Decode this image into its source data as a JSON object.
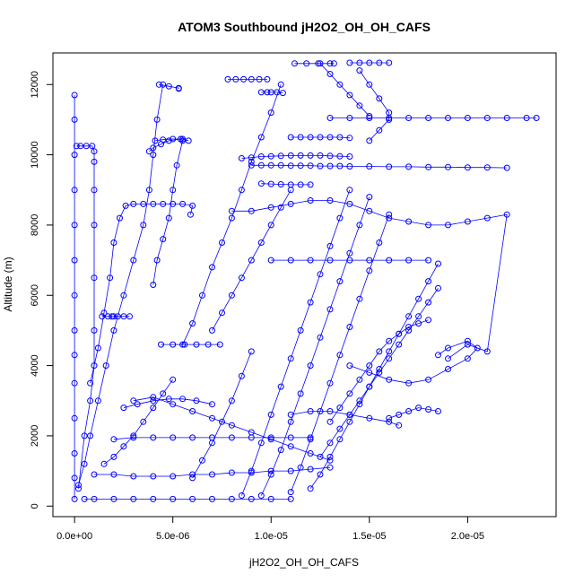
{
  "chart_data": {
    "type": "scatter",
    "title": "ATOM3 Southbound jH2O2_OH_OH_CAFS",
    "xlabel": "jH2O2_OH_OH_CAFS",
    "ylabel": "Altitude (m)",
    "xlim": [
      -1.1e-06,
      2.45e-05
    ],
    "ylim": [
      -300,
      12900
    ],
    "xticks": [
      {
        "value": 0,
        "label": "0.0e+00"
      },
      {
        "value": 5e-06,
        "label": "5.0e-06"
      },
      {
        "value": 1e-05,
        "label": "1.0e-05"
      },
      {
        "value": 1.5e-05,
        "label": "1.5e-05"
      },
      {
        "value": 2e-05,
        "label": "2.0e-05"
      }
    ],
    "yticks": [
      {
        "value": 0,
        "label": "0"
      },
      {
        "value": 2000,
        "label": "2000"
      },
      {
        "value": 4000,
        "label": "4000"
      },
      {
        "value": 6000,
        "label": "6000"
      },
      {
        "value": 8000,
        "label": "8000"
      },
      {
        "value": 10000,
        "label": "10000"
      },
      {
        "value": 12000,
        "label": "12000"
      }
    ],
    "marker": "open-circle",
    "line": true,
    "color": "#0000ff",
    "grid": false,
    "series": [
      {
        "x": [
          0,
          0,
          0,
          0,
          0,
          0,
          0,
          0,
          0,
          0,
          0,
          0,
          0,
          0
        ],
        "y": [
          11700,
          11000,
          10000,
          9000,
          8000,
          7000,
          6000,
          5000,
          4300,
          3500,
          2500,
          1500,
          800,
          200
        ]
      },
      {
        "x": [
          1e-07,
          3e-07,
          6e-07,
          9e-07,
          1e-06,
          1e-06,
          1e-06,
          1e-06,
          1e-06,
          1e-06,
          1e-06,
          8e-07,
          5e-07,
          2e-07
        ],
        "y": [
          10250,
          10250,
          10250,
          10250,
          10100,
          9800,
          9000,
          8000,
          6500,
          5000,
          4000,
          3000,
          2000,
          500
        ]
      },
      {
        "x": [
          2e-07,
          5e-07,
          8e-07,
          1.2e-06,
          1.6e-06,
          2e-06,
          2.5e-06,
          3e-06,
          3.5e-06,
          3.8e-06,
          4e-06,
          4.2e-06,
          4.5e-06
        ],
        "y": [
          600,
          1200,
          2000,
          3000,
          4000,
          5000,
          6000,
          7000,
          8000,
          9000,
          10000,
          11000,
          12000
        ]
      },
      {
        "x": [
          4.3e-06,
          4.8e-06,
          5.3e-06,
          5.3e-06
        ],
        "y": [
          12000,
          11950,
          11900,
          11880
        ]
      },
      {
        "x": [
          8e-07,
          1.2e-06,
          1.5e-06,
          1.8e-06,
          2e-06,
          2.3e-06,
          2.6e-06,
          3e-06,
          3.5e-06,
          4e-06,
          4.5e-06,
          5e-06,
          5.5e-06,
          6e-06,
          5.9e-06
        ],
        "y": [
          3500,
          4500,
          5500,
          6500,
          7500,
          8200,
          8550,
          8600,
          8600,
          8600,
          8600,
          8600,
          8600,
          8550,
          8300
        ]
      },
      {
        "x": [
          1.4e-06,
          1.7e-06,
          1.9e-06,
          2e-06,
          2.2e-06,
          2.5e-06,
          2.8e-06
        ],
        "y": [
          5400,
          5400,
          5400,
          5400,
          5400,
          5400,
          5400
        ]
      },
      {
        "x": [
          4e-06,
          4.2e-06,
          4.5e-06,
          4.8e-06,
          5e-06,
          5.2e-06,
          5.5e-06,
          5.4e-06,
          4.8e-06,
          4.4e-06,
          4e-06,
          3.8e-06
        ],
        "y": [
          6300,
          7000,
          7600,
          8200,
          9000,
          9700,
          10400,
          10450,
          10400,
          10300,
          10200,
          10100
        ]
      },
      {
        "x": [
          4.1e-06,
          4.5e-06,
          5e-06,
          5.5e-06,
          5.8e-06
        ],
        "y": [
          10400,
          10430,
          10450,
          10450,
          10400
        ]
      },
      {
        "x": [
          5.5e-06,
          6e-06,
          6.5e-06,
          7e-06,
          7.5e-06,
          8e-06,
          8.5e-06,
          9e-06,
          9.5e-06,
          1e-05,
          1.05e-05
        ],
        "y": [
          4600,
          5200,
          6000,
          6800,
          7500,
          8200,
          9000,
          9800,
          10500,
          11200,
          12000
        ]
      },
      {
        "x": [
          7.8e-06,
          8.2e-06,
          8.6e-06,
          9e-06,
          9.4e-06,
          9.8e-06
        ],
        "y": [
          12150,
          12150,
          12150,
          12150,
          12150,
          12150
        ]
      },
      {
        "x": [
          9.5e-06,
          9.8e-06,
          1e-05,
          1.03e-05,
          1.06e-05
        ],
        "y": [
          11780,
          11780,
          11780,
          11780,
          11760
        ]
      },
      {
        "x": [
          8.5e-06,
          9e-06,
          9.5e-06,
          1e-05,
          1.05e-05,
          1.1e-05,
          1.15e-05,
          1.2e-05,
          1.25e-05,
          1.3e-05,
          1.35e-05,
          1.4e-05
        ],
        "y": [
          9900,
          9920,
          9950,
          9960,
          9970,
          9980,
          9980,
          9980,
          9980,
          9970,
          9960,
          9950
        ]
      },
      {
        "x": [
          9e-06,
          9.5e-06,
          1e-05,
          1.05e-05,
          1.1e-05,
          1.15e-05,
          1.2e-05,
          1.25e-05,
          1.3e-05,
          1.35e-05,
          1.4e-05,
          1.5e-05,
          1.6e-05,
          1.7e-05,
          1.8e-05,
          1.9e-05,
          2e-05,
          2.1e-05,
          2.2e-05
        ],
        "y": [
          9700,
          9700,
          9700,
          9700,
          9690,
          9690,
          9690,
          9680,
          9680,
          9680,
          9670,
          9670,
          9660,
          9660,
          9650,
          9650,
          9640,
          9640,
          9630
        ]
      },
      {
        "x": [
          1.1e-05,
          1.15e-05,
          1.2e-05,
          1.25e-05,
          1.3e-05,
          1.35e-05,
          1.4e-05
        ],
        "y": [
          10500,
          10500,
          10500,
          10500,
          10500,
          10500,
          10480
        ]
      },
      {
        "x": [
          9.5e-06,
          1e-05,
          1.05e-05,
          1.1e-05,
          1.15e-05,
          1.2e-05
        ],
        "y": [
          9180,
          9170,
          9160,
          9150,
          9150,
          9150
        ]
      },
      {
        "x": [
          1.12e-05,
          1.18e-05,
          1.24e-05,
          1.3e-05,
          1.32e-05
        ],
        "y": [
          12600,
          12600,
          12600,
          12600,
          12600
        ]
      },
      {
        "x": [
          1.4e-05,
          1.45e-05,
          1.5e-05,
          1.55e-05,
          1.6e-05
        ],
        "y": [
          12620,
          12620,
          12620,
          12620,
          12620
        ]
      },
      {
        "x": [
          1.3e-05,
          1.4e-05,
          1.5e-05,
          1.6e-05,
          1.7e-05,
          1.8e-05,
          1.9e-05,
          2e-05,
          2.1e-05,
          2.2e-05,
          2.3e-05,
          2.35e-05
        ],
        "y": [
          11050,
          11050,
          11050,
          11050,
          11050,
          11050,
          11050,
          11050,
          11050,
          11050,
          11050,
          11050
        ]
      },
      {
        "x": [
          8e-06,
          9e-06,
          1e-05,
          1.1e-05,
          1.2e-05,
          1.3e-05,
          1.4e-05,
          1.5e-05,
          1.6e-05,
          1.7e-05,
          1.8e-05,
          1.9e-05,
          2e-05,
          2.1e-05,
          2.2e-05,
          2.1e-05,
          2e-05,
          1.9e-05
        ],
        "y": [
          8400,
          8400,
          8500,
          8600,
          8700,
          8700,
          8600,
          8400,
          8200,
          8100,
          8000,
          8000,
          8100,
          8200,
          8300,
          4400,
          4600,
          4200
        ]
      },
      {
        "x": [
          8.5e-06,
          9e-06,
          9.5e-06,
          1e-05,
          1.05e-05,
          1.1e-05,
          1.15e-05,
          1.2e-05,
          1.25e-05,
          1.3e-05,
          1.35e-05,
          1.4e-05
        ],
        "y": [
          300,
          1000,
          1800,
          2600,
          3400,
          4200,
          5000,
          5800,
          6600,
          7400,
          8200,
          9000
        ]
      },
      {
        "x": [
          9.5e-06,
          1e-05,
          1.05e-05,
          1.1e-05,
          1.15e-05,
          1.2e-05,
          1.25e-05,
          1.3e-05,
          1.35e-05,
          1.4e-05,
          1.45e-05,
          1.5e-05
        ],
        "y": [
          300,
          900,
          1600,
          2400,
          3200,
          4000,
          4800,
          5600,
          6400,
          7200,
          8000,
          8800
        ]
      },
      {
        "x": [
          1.1e-05,
          1.15e-05,
          1.2e-05,
          1.25e-05,
          1.3e-05,
          1.35e-05,
          1.4e-05,
          1.45e-05,
          1.5e-05,
          1.55e-05,
          1.6e-05
        ],
        "y": [
          400,
          1100,
          1900,
          2700,
          3500,
          4300,
          5100,
          5900,
          6700,
          7500,
          8300
        ]
      },
      {
        "x": [
          1.2e-05,
          1.25e-05,
          1.3e-05,
          1.35e-05,
          1.4e-05,
          1.45e-05,
          1.5e-05,
          1.55e-05,
          1.6e-05,
          1.65e-05,
          1.7e-05,
          1.75e-05,
          1.8e-05,
          1.85e-05
        ],
        "y": [
          500,
          900,
          1400,
          1900,
          2400,
          2900,
          3400,
          3900,
          4400,
          4900,
          5400,
          5900,
          6400,
          6900
        ]
      },
      {
        "x": [
          1.25e-05,
          1.3e-05,
          1.35e-05,
          1.4e-05,
          1.45e-05,
          1.5e-05,
          1.55e-05,
          1.6e-05,
          1.65e-05,
          1.7e-05,
          1.75e-05,
          1.8e-05,
          1.85e-05
        ],
        "y": [
          1400,
          1800,
          2200,
          2600,
          3000,
          3400,
          3800,
          4200,
          4600,
          5000,
          5400,
          5800,
          6200
        ]
      },
      {
        "x": [
          1.3e-05,
          1.35e-05,
          1.4e-05,
          1.45e-05,
          1.5e-05,
          1.55e-05,
          1.6e-05,
          1.65e-05,
          1.7e-05,
          1.75e-05,
          1.8e-05
        ],
        "y": [
          2400,
          2800,
          3200,
          3600,
          4000,
          4400,
          4700,
          4900,
          5100,
          5200,
          5300
        ]
      },
      {
        "x": [
          1.4e-05,
          1.5e-05,
          1.6e-05,
          1.7e-05,
          1.8e-05,
          1.9e-05,
          2e-05,
          2.05e-05,
          2e-05,
          1.9e-05,
          1.85e-05
        ],
        "y": [
          4000,
          3800,
          3600,
          3500,
          3600,
          3900,
          4200,
          4500,
          4700,
          4500,
          4300
        ]
      },
      {
        "x": [
          1.6e-05,
          1.65e-05,
          1.7e-05,
          1.75e-05,
          1.8e-05,
          1.85e-05
        ],
        "y": [
          2500,
          2600,
          2700,
          2800,
          2750,
          2700
        ]
      },
      {
        "x": [
          5e-07,
          1e-06,
          2e-06,
          3e-06,
          4e-06,
          5e-06,
          6e-06,
          7e-06,
          8e-06,
          9e-06,
          1e-05,
          1.1e-05
        ],
        "y": [
          200,
          200,
          200,
          200,
          200,
          200,
          200,
          200,
          200,
          200,
          200,
          200
        ]
      },
      {
        "x": [
          1e-06,
          2e-06,
          3e-06,
          4e-06,
          5e-06,
          6e-06,
          7e-06,
          8e-06,
          9e-06,
          1e-05,
          1.1e-05,
          1.2e-05,
          1.3e-05
        ],
        "y": [
          900,
          900,
          850,
          850,
          850,
          900,
          900,
          950,
          950,
          1000,
          1000,
          1050,
          1100
        ]
      },
      {
        "x": [
          2e-06,
          3e-06,
          4e-06,
          5e-06,
          6e-06,
          7e-06,
          8e-06,
          9e-06,
          1e-05,
          1.1e-05,
          1.2e-05
        ],
        "y": [
          1900,
          1950,
          1950,
          1950,
          1950,
          1950,
          1950,
          1950,
          1950,
          1950,
          1950
        ]
      },
      {
        "x": [
          3e-06,
          4e-06,
          5e-06,
          6e-06,
          7e-06,
          8e-06,
          9e-06,
          1e-05,
          1.1e-05,
          1.2e-05,
          1.3e-05
        ],
        "y": [
          3000,
          3100,
          2900,
          2700,
          2500,
          2300,
          2100,
          1900,
          1700,
          1500,
          1300
        ]
      },
      {
        "x": [
          2.5e-06,
          3.2e-06,
          4e-06,
          4.8e-06,
          5.5e-06,
          6.2e-06,
          7e-06
        ],
        "y": [
          2800,
          2900,
          3000,
          3050,
          3050,
          3000,
          2900
        ]
      },
      {
        "x": [
          4.4e-06,
          5e-06,
          5.6e-06,
          6.2e-06,
          6.8e-06,
          7.4e-06
        ],
        "y": [
          4600,
          4600,
          4600,
          4600,
          4600,
          4600
        ]
      },
      {
        "x": [
          1e-05,
          1.1e-05,
          1.2e-05,
          1.3e-05,
          1.4e-05,
          1.5e-05,
          1.6e-05,
          1.7e-05,
          1.8e-05
        ],
        "y": [
          7000,
          7000,
          7000,
          7000,
          7000,
          7000,
          7000,
          7000,
          7000
        ]
      },
      {
        "x": [
          1.1e-05,
          1.2e-05,
          1.3e-05,
          1.4e-05,
          1.5e-05,
          1.6e-05,
          1.65e-05
        ],
        "y": [
          2600,
          2700,
          2700,
          2600,
          2500,
          2400,
          2300
        ]
      },
      {
        "x": [
          1.5e-06,
          2e-06,
          2.5e-06,
          3e-06,
          3.5e-06,
          4e-06,
          4.5e-06,
          5e-06
        ],
        "y": [
          1200,
          1400,
          1700,
          2000,
          2400,
          2800,
          3200,
          3600
        ]
      },
      {
        "x": [
          6e-06,
          6.5e-06,
          7e-06,
          7.5e-06,
          8e-06,
          8.5e-06,
          9e-06
        ],
        "y": [
          800,
          1300,
          1800,
          2400,
          3000,
          3700,
          4400
        ]
      },
      {
        "x": [
          7e-06,
          7.5e-06,
          8e-06,
          8.5e-06,
          9e-06,
          9.5e-06,
          1e-05,
          1.05e-05,
          1.1e-05
        ],
        "y": [
          5000,
          5500,
          6000,
          6500,
          7000,
          7500,
          8000,
          8500,
          9000
        ]
      },
      {
        "x": [
          1.45e-05,
          1.5e-05,
          1.55e-05,
          1.6e-05,
          1.6e-05,
          1.55e-05,
          1.5e-05
        ],
        "y": [
          12400,
          12000,
          11600,
          11200,
          11000,
          10700,
          10400
        ]
      },
      {
        "x": [
          1.25e-05,
          1.3e-05,
          1.35e-05,
          1.4e-05,
          1.45e-05,
          1.5e-05
        ],
        "y": [
          12600,
          12300,
          12000,
          11700,
          11400,
          11100
        ]
      }
    ]
  }
}
